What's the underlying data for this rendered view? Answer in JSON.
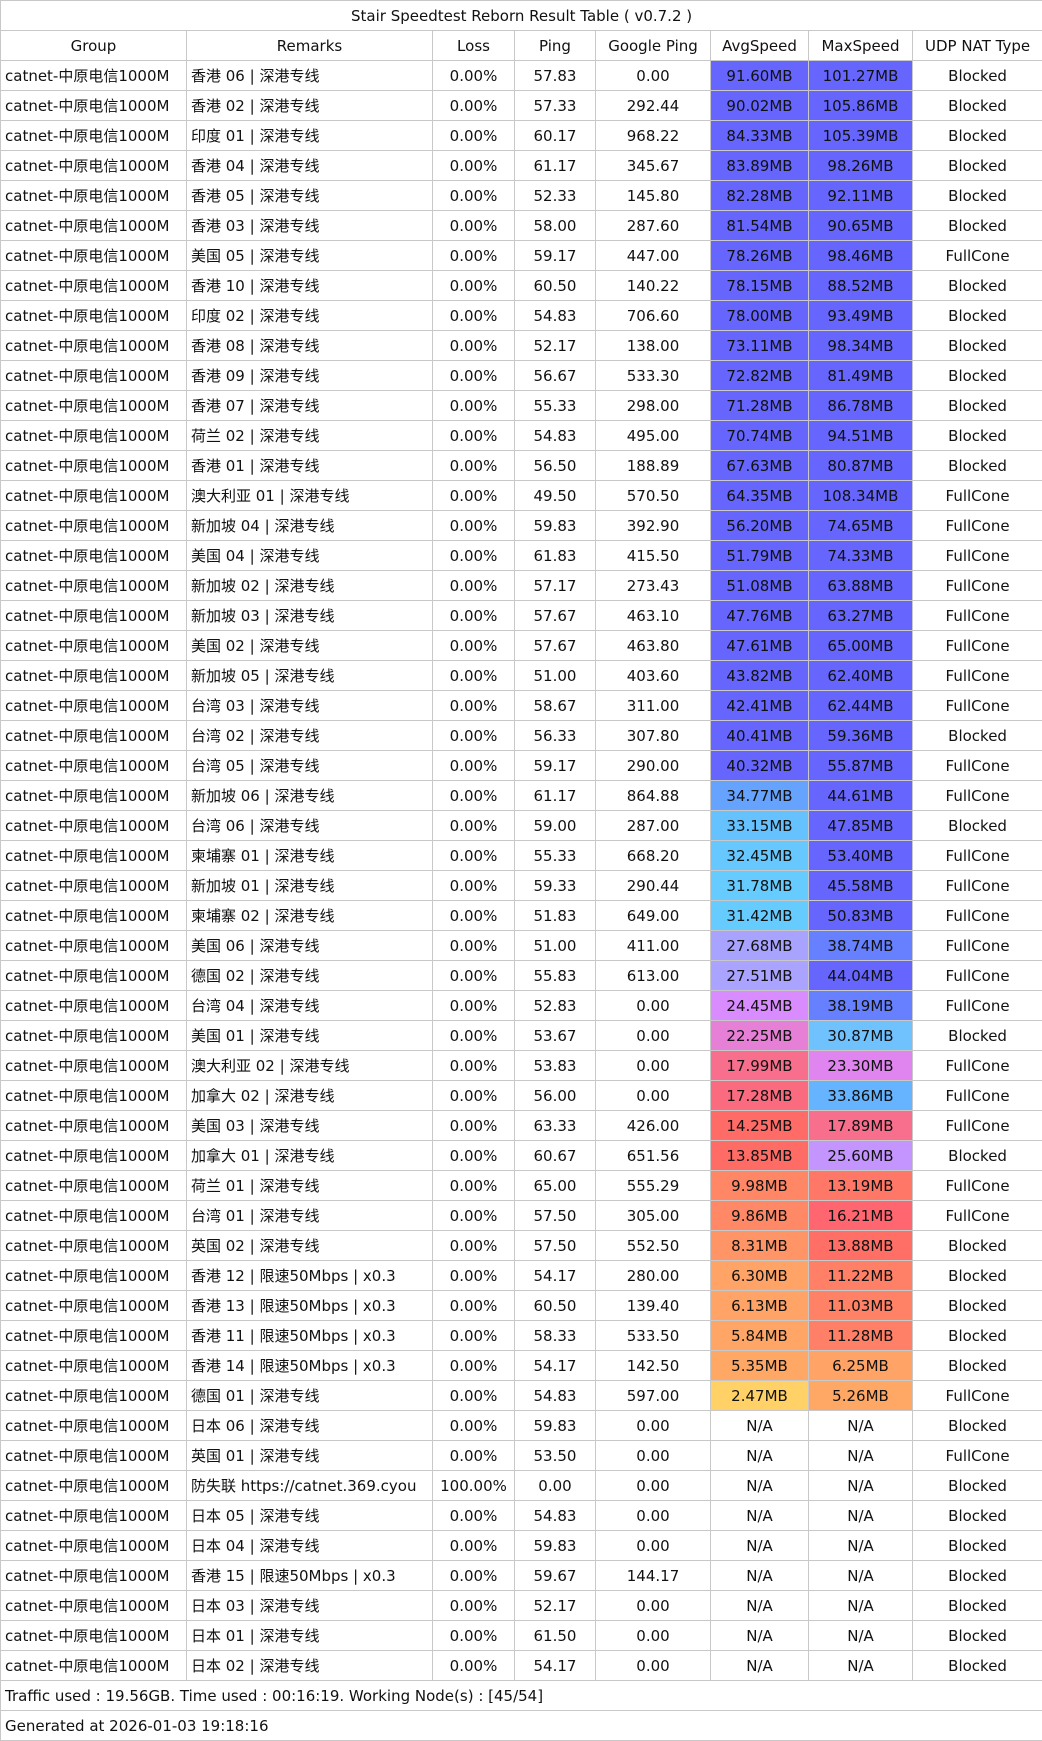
{
  "title": "Stair Speedtest Reborn Result Table ( v0.7.2 )",
  "columns": [
    "Group",
    "Remarks",
    "Loss",
    "Ping",
    "Google Ping",
    "AvgSpeed",
    "MaxSpeed",
    "UDP NAT Type"
  ],
  "rows": [
    {
      "group": "catnet-中原电信1000M",
      "remarks": "香港 06 | 深港专线",
      "loss": "0.00%",
      "ping": "57.83",
      "google_ping": "0.00",
      "avg_speed": "91.60MB",
      "avg_color": "#6666ff",
      "max_speed": "101.27MB",
      "max_color": "#6666ff",
      "udp_nat": "Blocked"
    },
    {
      "group": "catnet-中原电信1000M",
      "remarks": "香港 02 | 深港专线",
      "loss": "0.00%",
      "ping": "57.33",
      "google_ping": "292.44",
      "avg_speed": "90.02MB",
      "avg_color": "#6666ff",
      "max_speed": "105.86MB",
      "max_color": "#6666ff",
      "udp_nat": "Blocked"
    },
    {
      "group": "catnet-中原电信1000M",
      "remarks": "印度 01 | 深港专线",
      "loss": "0.00%",
      "ping": "60.17",
      "google_ping": "968.22",
      "avg_speed": "84.33MB",
      "avg_color": "#6666ff",
      "max_speed": "105.39MB",
      "max_color": "#6666ff",
      "udp_nat": "Blocked"
    },
    {
      "group": "catnet-中原电信1000M",
      "remarks": "香港 04 | 深港专线",
      "loss": "0.00%",
      "ping": "61.17",
      "google_ping": "345.67",
      "avg_speed": "83.89MB",
      "avg_color": "#6666ff",
      "max_speed": "98.26MB",
      "max_color": "#6666ff",
      "udp_nat": "Blocked"
    },
    {
      "group": "catnet-中原电信1000M",
      "remarks": "香港 05 | 深港专线",
      "loss": "0.00%",
      "ping": "52.33",
      "google_ping": "145.80",
      "avg_speed": "82.28MB",
      "avg_color": "#6666ff",
      "max_speed": "92.11MB",
      "max_color": "#6666ff",
      "udp_nat": "Blocked"
    },
    {
      "group": "catnet-中原电信1000M",
      "remarks": "香港 03 | 深港专线",
      "loss": "0.00%",
      "ping": "58.00",
      "google_ping": "287.60",
      "avg_speed": "81.54MB",
      "avg_color": "#6666ff",
      "max_speed": "90.65MB",
      "max_color": "#6666ff",
      "udp_nat": "Blocked"
    },
    {
      "group": "catnet-中原电信1000M",
      "remarks": "美国 05 | 深港专线",
      "loss": "0.00%",
      "ping": "59.17",
      "google_ping": "447.00",
      "avg_speed": "78.26MB",
      "avg_color": "#6666ff",
      "max_speed": "98.46MB",
      "max_color": "#6666ff",
      "udp_nat": "FullCone"
    },
    {
      "group": "catnet-中原电信1000M",
      "remarks": "香港 10 | 深港专线",
      "loss": "0.00%",
      "ping": "60.50",
      "google_ping": "140.22",
      "avg_speed": "78.15MB",
      "avg_color": "#6666ff",
      "max_speed": "88.52MB",
      "max_color": "#6666ff",
      "udp_nat": "Blocked"
    },
    {
      "group": "catnet-中原电信1000M",
      "remarks": "印度 02 | 深港专线",
      "loss": "0.00%",
      "ping": "54.83",
      "google_ping": "706.60",
      "avg_speed": "78.00MB",
      "avg_color": "#6666ff",
      "max_speed": "93.49MB",
      "max_color": "#6666ff",
      "udp_nat": "Blocked"
    },
    {
      "group": "catnet-中原电信1000M",
      "remarks": "香港 08 | 深港专线",
      "loss": "0.00%",
      "ping": "52.17",
      "google_ping": "138.00",
      "avg_speed": "73.11MB",
      "avg_color": "#6666ff",
      "max_speed": "98.34MB",
      "max_color": "#6666ff",
      "udp_nat": "Blocked"
    },
    {
      "group": "catnet-中原电信1000M",
      "remarks": "香港 09 | 深港专线",
      "loss": "0.00%",
      "ping": "56.67",
      "google_ping": "533.30",
      "avg_speed": "72.82MB",
      "avg_color": "#6666ff",
      "max_speed": "81.49MB",
      "max_color": "#6666ff",
      "udp_nat": "Blocked"
    },
    {
      "group": "catnet-中原电信1000M",
      "remarks": "香港 07 | 深港专线",
      "loss": "0.00%",
      "ping": "55.33",
      "google_ping": "298.00",
      "avg_speed": "71.28MB",
      "avg_color": "#6666ff",
      "max_speed": "86.78MB",
      "max_color": "#6666ff",
      "udp_nat": "Blocked"
    },
    {
      "group": "catnet-中原电信1000M",
      "remarks": "荷兰 02 | 深港专线",
      "loss": "0.00%",
      "ping": "54.83",
      "google_ping": "495.00",
      "avg_speed": "70.74MB",
      "avg_color": "#6666ff",
      "max_speed": "94.51MB",
      "max_color": "#6666ff",
      "udp_nat": "Blocked"
    },
    {
      "group": "catnet-中原电信1000M",
      "remarks": "香港 01 | 深港专线",
      "loss": "0.00%",
      "ping": "56.50",
      "google_ping": "188.89",
      "avg_speed": "67.63MB",
      "avg_color": "#6666ff",
      "max_speed": "80.87MB",
      "max_color": "#6666ff",
      "udp_nat": "Blocked"
    },
    {
      "group": "catnet-中原电信1000M",
      "remarks": "澳大利亚 01 | 深港专线",
      "loss": "0.00%",
      "ping": "49.50",
      "google_ping": "570.50",
      "avg_speed": "64.35MB",
      "avg_color": "#6666ff",
      "max_speed": "108.34MB",
      "max_color": "#6666ff",
      "udp_nat": "FullCone"
    },
    {
      "group": "catnet-中原电信1000M",
      "remarks": "新加坡 04 | 深港专线",
      "loss": "0.00%",
      "ping": "59.83",
      "google_ping": "392.90",
      "avg_speed": "56.20MB",
      "avg_color": "#6666ff",
      "max_speed": "74.65MB",
      "max_color": "#6666ff",
      "udp_nat": "FullCone"
    },
    {
      "group": "catnet-中原电信1000M",
      "remarks": "美国 04 | 深港专线",
      "loss": "0.00%",
      "ping": "61.83",
      "google_ping": "415.50",
      "avg_speed": "51.79MB",
      "avg_color": "#6666ff",
      "max_speed": "74.33MB",
      "max_color": "#6666ff",
      "udp_nat": "FullCone"
    },
    {
      "group": "catnet-中原电信1000M",
      "remarks": "新加坡 02 | 深港专线",
      "loss": "0.00%",
      "ping": "57.17",
      "google_ping": "273.43",
      "avg_speed": "51.08MB",
      "avg_color": "#6666ff",
      "max_speed": "63.88MB",
      "max_color": "#6666ff",
      "udp_nat": "FullCone"
    },
    {
      "group": "catnet-中原电信1000M",
      "remarks": "新加坡 03 | 深港专线",
      "loss": "0.00%",
      "ping": "57.67",
      "google_ping": "463.10",
      "avg_speed": "47.76MB",
      "avg_color": "#6666ff",
      "max_speed": "63.27MB",
      "max_color": "#6666ff",
      "udp_nat": "FullCone"
    },
    {
      "group": "catnet-中原电信1000M",
      "remarks": "美国 02 | 深港专线",
      "loss": "0.00%",
      "ping": "57.67",
      "google_ping": "463.80",
      "avg_speed": "47.61MB",
      "avg_color": "#6666ff",
      "max_speed": "65.00MB",
      "max_color": "#6666ff",
      "udp_nat": "FullCone"
    },
    {
      "group": "catnet-中原电信1000M",
      "remarks": "新加坡 05 | 深港专线",
      "loss": "0.00%",
      "ping": "51.00",
      "google_ping": "403.60",
      "avg_speed": "43.82MB",
      "avg_color": "#6666ff",
      "max_speed": "62.40MB",
      "max_color": "#6666ff",
      "udp_nat": "FullCone"
    },
    {
      "group": "catnet-中原电信1000M",
      "remarks": "台湾 03 | 深港专线",
      "loss": "0.00%",
      "ping": "58.67",
      "google_ping": "311.00",
      "avg_speed": "42.41MB",
      "avg_color": "#6666ff",
      "max_speed": "62.44MB",
      "max_color": "#6666ff",
      "udp_nat": "FullCone"
    },
    {
      "group": "catnet-中原电信1000M",
      "remarks": "台湾 02 | 深港专线",
      "loss": "0.00%",
      "ping": "56.33",
      "google_ping": "307.80",
      "avg_speed": "40.41MB",
      "avg_color": "#6666ff",
      "max_speed": "59.36MB",
      "max_color": "#6666ff",
      "udp_nat": "Blocked"
    },
    {
      "group": "catnet-中原电信1000M",
      "remarks": "台湾 05 | 深港专线",
      "loss": "0.00%",
      "ping": "59.17",
      "google_ping": "290.00",
      "avg_speed": "40.32MB",
      "avg_color": "#6666ff",
      "max_speed": "55.87MB",
      "max_color": "#6666ff",
      "udp_nat": "FullCone"
    },
    {
      "group": "catnet-中原电信1000M",
      "remarks": "新加坡 06 | 深港专线",
      "loss": "0.00%",
      "ping": "61.17",
      "google_ping": "864.88",
      "avg_speed": "34.77MB",
      "avg_color": "#66a3ff",
      "max_speed": "44.61MB",
      "max_color": "#6666ff",
      "udp_nat": "FullCone"
    },
    {
      "group": "catnet-中原电信1000M",
      "remarks": "台湾 06 | 深港专线",
      "loss": "0.00%",
      "ping": "59.00",
      "google_ping": "287.00",
      "avg_speed": "33.15MB",
      "avg_color": "#66c2ff",
      "max_speed": "47.85MB",
      "max_color": "#6666ff",
      "udp_nat": "Blocked"
    },
    {
      "group": "catnet-中原电信1000M",
      "remarks": "柬埔寨 01 | 深港专线",
      "loss": "0.00%",
      "ping": "55.33",
      "google_ping": "668.20",
      "avg_speed": "32.45MB",
      "avg_color": "#66c8ff",
      "max_speed": "53.40MB",
      "max_color": "#6666ff",
      "udp_nat": "FullCone"
    },
    {
      "group": "catnet-中原电信1000M",
      "remarks": "新加坡 01 | 深港专线",
      "loss": "0.00%",
      "ping": "59.33",
      "google_ping": "290.44",
      "avg_speed": "31.78MB",
      "avg_color": "#66ccff",
      "max_speed": "45.58MB",
      "max_color": "#6666ff",
      "udp_nat": "FullCone"
    },
    {
      "group": "catnet-中原电信1000M",
      "remarks": "柬埔寨 02 | 深港专线",
      "loss": "0.00%",
      "ping": "51.83",
      "google_ping": "649.00",
      "avg_speed": "31.42MB",
      "avg_color": "#66ccff",
      "max_speed": "50.83MB",
      "max_color": "#6666ff",
      "udp_nat": "FullCone"
    },
    {
      "group": "catnet-中原电信1000M",
      "remarks": "美国 06 | 深港专线",
      "loss": "0.00%",
      "ping": "51.00",
      "google_ping": "411.00",
      "avg_speed": "27.68MB",
      "avg_color": "#a8a3ff",
      "max_speed": "38.74MB",
      "max_color": "#6680ff",
      "udp_nat": "FullCone"
    },
    {
      "group": "catnet-中原电信1000M",
      "remarks": "德国 02 | 深港专线",
      "loss": "0.00%",
      "ping": "55.83",
      "google_ping": "613.00",
      "avg_speed": "27.51MB",
      "avg_color": "#aaa3ff",
      "max_speed": "44.04MB",
      "max_color": "#6666ff",
      "udp_nat": "FullCone"
    },
    {
      "group": "catnet-中原电信1000M",
      "remarks": "台湾 04 | 深港专线",
      "loss": "0.00%",
      "ping": "52.83",
      "google_ping": "0.00",
      "avg_speed": "24.45MB",
      "avg_color": "#d98cff",
      "max_speed": "38.19MB",
      "max_color": "#6680ff",
      "udp_nat": "FullCone"
    },
    {
      "group": "catnet-中原电信1000M",
      "remarks": "美国 01 | 深港专线",
      "loss": "0.00%",
      "ping": "53.67",
      "google_ping": "0.00",
      "avg_speed": "22.25MB",
      "avg_color": "#e680d6",
      "max_speed": "30.87MB",
      "max_color": "#70c2ff",
      "udp_nat": "Blocked"
    },
    {
      "group": "catnet-中原电信1000M",
      "remarks": "澳大利亚 02 | 深港专线",
      "loss": "0.00%",
      "ping": "53.83",
      "google_ping": "0.00",
      "avg_speed": "17.99MB",
      "avg_color": "#f76f8c",
      "max_speed": "23.30MB",
      "max_color": "#e085f0",
      "udp_nat": "FullCone"
    },
    {
      "group": "catnet-中原电信1000M",
      "remarks": "加拿大 02 | 深港专线",
      "loss": "0.00%",
      "ping": "56.00",
      "google_ping": "0.00",
      "avg_speed": "17.28MB",
      "avg_color": "#fa6b80",
      "max_speed": "33.86MB",
      "max_color": "#66b3ff",
      "udp_nat": "FullCone"
    },
    {
      "group": "catnet-中原电信1000M",
      "remarks": "美国 03 | 深港专线",
      "loss": "0.00%",
      "ping": "63.33",
      "google_ping": "426.00",
      "avg_speed": "14.25MB",
      "avg_color": "#ff6b66",
      "max_speed": "17.89MB",
      "max_color": "#f76f8c",
      "udp_nat": "FullCone"
    },
    {
      "group": "catnet-中原电信1000M",
      "remarks": "加拿大 01 | 深港专线",
      "loss": "0.00%",
      "ping": "60.67",
      "google_ping": "651.56",
      "avg_speed": "13.85MB",
      "avg_color": "#ff6c66",
      "max_speed": "25.60MB",
      "max_color": "#c494ff",
      "udp_nat": "Blocked"
    },
    {
      "group": "catnet-中原电信1000M",
      "remarks": "荷兰 01 | 深港专线",
      "loss": "0.00%",
      "ping": "65.00",
      "google_ping": "555.29",
      "avg_speed": "9.98MB",
      "avg_color": "#ff8766",
      "max_speed": "13.19MB",
      "max_color": "#ff7766",
      "udp_nat": "FullCone"
    },
    {
      "group": "catnet-中原电信1000M",
      "remarks": "台湾 01 | 深港专线",
      "loss": "0.00%",
      "ping": "57.50",
      "google_ping": "305.00",
      "avg_speed": "9.86MB",
      "avg_color": "#ff8866",
      "max_speed": "16.21MB",
      "max_color": "#ff6670",
      "udp_nat": "FullCone"
    },
    {
      "group": "catnet-中原电信1000M",
      "remarks": "英国 02 | 深港专线",
      "loss": "0.00%",
      "ping": "57.50",
      "google_ping": "552.50",
      "avg_speed": "8.31MB",
      "avg_color": "#ff9466",
      "max_speed": "13.88MB",
      "max_color": "#ff6f66",
      "udp_nat": "Blocked"
    },
    {
      "group": "catnet-中原电信1000M",
      "remarks": "香港 12 | 限速50Mbps | x0.3",
      "loss": "0.00%",
      "ping": "54.17",
      "google_ping": "280.00",
      "avg_speed": "6.30MB",
      "avg_color": "#ffa366",
      "max_speed": "11.22MB",
      "max_color": "#ff8066",
      "udp_nat": "Blocked"
    },
    {
      "group": "catnet-中原电信1000M",
      "remarks": "香港 13 | 限速50Mbps | x0.3",
      "loss": "0.00%",
      "ping": "60.50",
      "google_ping": "139.40",
      "avg_speed": "6.13MB",
      "avg_color": "#ffa466",
      "max_speed": "11.03MB",
      "max_color": "#ff8166",
      "udp_nat": "Blocked"
    },
    {
      "group": "catnet-中原电信1000M",
      "remarks": "香港 11 | 限速50Mbps | x0.3",
      "loss": "0.00%",
      "ping": "58.33",
      "google_ping": "533.50",
      "avg_speed": "5.84MB",
      "avg_color": "#ffa666",
      "max_speed": "11.28MB",
      "max_color": "#ff8066",
      "udp_nat": "Blocked"
    },
    {
      "group": "catnet-中原电信1000M",
      "remarks": "香港 14 | 限速50Mbps | x0.3",
      "loss": "0.00%",
      "ping": "54.17",
      "google_ping": "142.50",
      "avg_speed": "5.35MB",
      "avg_color": "#ffa866",
      "max_speed": "6.25MB",
      "max_color": "#ffa366",
      "udp_nat": "Blocked"
    },
    {
      "group": "catnet-中原电信1000M",
      "remarks": "德国 01 | 深港专线",
      "loss": "0.00%",
      "ping": "54.83",
      "google_ping": "597.00",
      "avg_speed": "2.47MB",
      "avg_color": "#ffd166",
      "max_speed": "5.26MB",
      "max_color": "#ffa866",
      "udp_nat": "FullCone"
    },
    {
      "group": "catnet-中原电信1000M",
      "remarks": "日本 06 | 深港专线",
      "loss": "0.00%",
      "ping": "59.83",
      "google_ping": "0.00",
      "avg_speed": "N/A",
      "avg_color": "#ffffff",
      "max_speed": "N/A",
      "max_color": "#ffffff",
      "udp_nat": "Blocked"
    },
    {
      "group": "catnet-中原电信1000M",
      "remarks": "英国 01 | 深港专线",
      "loss": "0.00%",
      "ping": "53.50",
      "google_ping": "0.00",
      "avg_speed": "N/A",
      "avg_color": "#ffffff",
      "max_speed": "N/A",
      "max_color": "#ffffff",
      "udp_nat": "FullCone"
    },
    {
      "group": "catnet-中原电信1000M",
      "remarks": "防失联 https://catnet.369.cyou",
      "loss": "100.00%",
      "ping": "0.00",
      "google_ping": "0.00",
      "avg_speed": "N/A",
      "avg_color": "#ffffff",
      "max_speed": "N/A",
      "max_color": "#ffffff",
      "udp_nat": "Blocked"
    },
    {
      "group": "catnet-中原电信1000M",
      "remarks": "日本 05 | 深港专线",
      "loss": "0.00%",
      "ping": "54.83",
      "google_ping": "0.00",
      "avg_speed": "N/A",
      "avg_color": "#ffffff",
      "max_speed": "N/A",
      "max_color": "#ffffff",
      "udp_nat": "Blocked"
    },
    {
      "group": "catnet-中原电信1000M",
      "remarks": "日本 04 | 深港专线",
      "loss": "0.00%",
      "ping": "59.83",
      "google_ping": "0.00",
      "avg_speed": "N/A",
      "avg_color": "#ffffff",
      "max_speed": "N/A",
      "max_color": "#ffffff",
      "udp_nat": "Blocked"
    },
    {
      "group": "catnet-中原电信1000M",
      "remarks": "香港 15 | 限速50Mbps | x0.3",
      "loss": "0.00%",
      "ping": "59.67",
      "google_ping": "144.17",
      "avg_speed": "N/A",
      "avg_color": "#ffffff",
      "max_speed": "N/A",
      "max_color": "#ffffff",
      "udp_nat": "Blocked"
    },
    {
      "group": "catnet-中原电信1000M",
      "remarks": "日本 03 | 深港专线",
      "loss": "0.00%",
      "ping": "52.17",
      "google_ping": "0.00",
      "avg_speed": "N/A",
      "avg_color": "#ffffff",
      "max_speed": "N/A",
      "max_color": "#ffffff",
      "udp_nat": "Blocked"
    },
    {
      "group": "catnet-中原电信1000M",
      "remarks": "日本 01 | 深港专线",
      "loss": "0.00%",
      "ping": "61.50",
      "google_ping": "0.00",
      "avg_speed": "N/A",
      "avg_color": "#ffffff",
      "max_speed": "N/A",
      "max_color": "#ffffff",
      "udp_nat": "Blocked"
    },
    {
      "group": "catnet-中原电信1000M",
      "remarks": "日本 02 | 深港专线",
      "loss": "0.00%",
      "ping": "54.17",
      "google_ping": "0.00",
      "avg_speed": "N/A",
      "avg_color": "#ffffff",
      "max_speed": "N/A",
      "max_color": "#ffffff",
      "udp_nat": "Blocked"
    }
  ],
  "footer": {
    "traffic_summary": "Traffic used : 19.56GB. Time used : 00:16:19. Working Node(s) : [45/54]",
    "generated_at": "Generated at 2026-01-03 19:18:16"
  },
  "colors": {
    "grid_border": "#c8c8c8",
    "fast_blue": "#6666ff",
    "slow_yellow": "#ffd166"
  }
}
